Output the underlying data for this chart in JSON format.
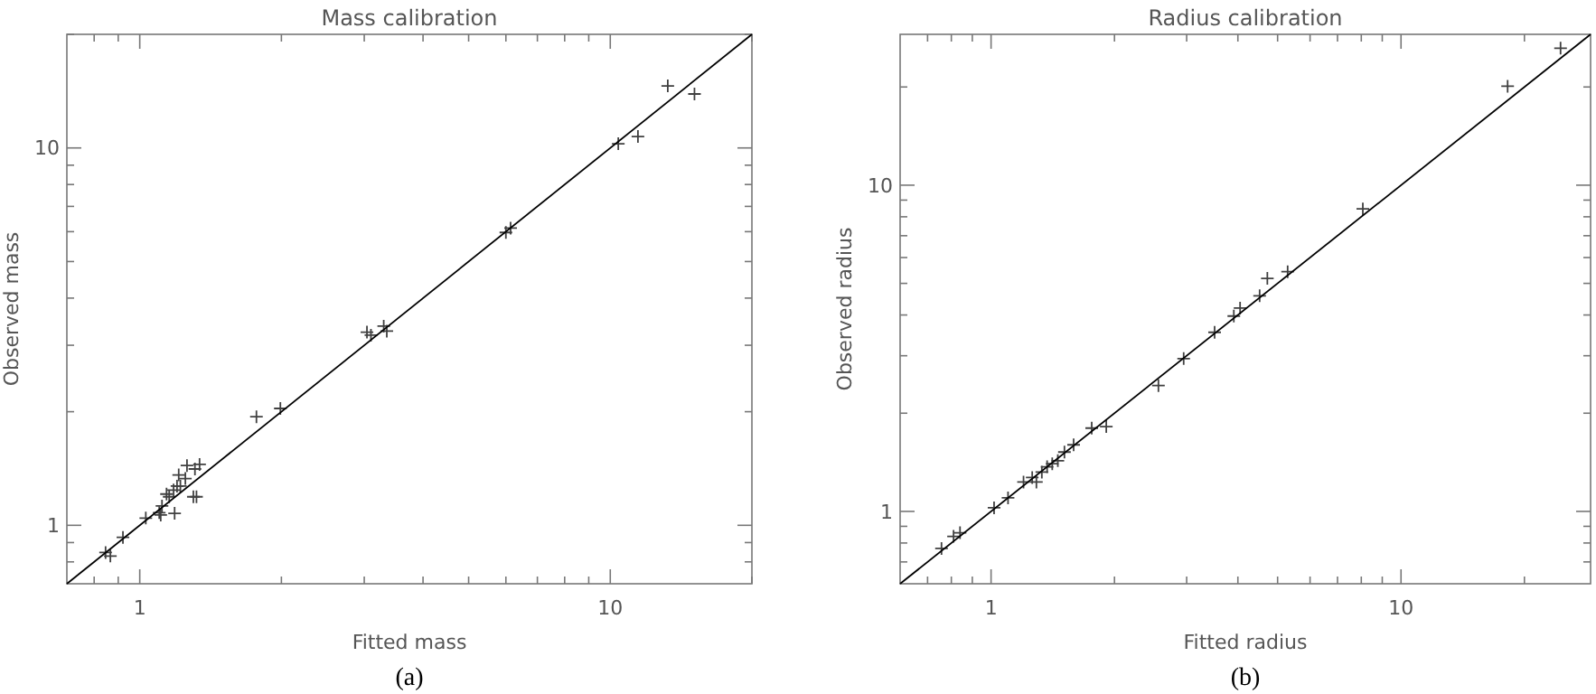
{
  "chart_data": [
    {
      "type": "scatter",
      "title": "Mass calibration",
      "xlabel": "Fitted mass",
      "ylabel": "Observed mass",
      "log": "xy",
      "annotations": [
        "(a)"
      ],
      "xlim": [
        0.7,
        20
      ],
      "ylim": [
        0.7,
        20
      ],
      "xticks": [
        {
          "value": 0.8,
          "label": null
        },
        {
          "value": 0.9,
          "label": null
        },
        {
          "value": 1,
          "label": "1"
        },
        {
          "value": 2,
          "label": null
        },
        {
          "value": 3,
          "label": null
        },
        {
          "value": 4,
          "label": null
        },
        {
          "value": 5,
          "label": null
        },
        {
          "value": 6,
          "label": null
        },
        {
          "value": 7,
          "label": null
        },
        {
          "value": 8,
          "label": null
        },
        {
          "value": 9,
          "label": null
        },
        {
          "value": 10,
          "label": "10"
        },
        {
          "value": 20,
          "label": null
        }
      ],
      "yticks": [
        {
          "value": 0.8,
          "label": null
        },
        {
          "value": 0.9,
          "label": null
        },
        {
          "value": 1,
          "label": "1"
        },
        {
          "value": 2,
          "label": null
        },
        {
          "value": 3,
          "label": null
        },
        {
          "value": 4,
          "label": null
        },
        {
          "value": 5,
          "label": null
        },
        {
          "value": 6,
          "label": null
        },
        {
          "value": 7,
          "label": null
        },
        {
          "value": 8,
          "label": null
        },
        {
          "value": 9,
          "label": null
        },
        {
          "value": 10,
          "label": "10"
        },
        {
          "value": 20,
          "label": null
        }
      ],
      "series": [
        {
          "type": "scatter",
          "marker": "cross",
          "color": "#404040",
          "x": [
            0.846,
            0.866,
            0.921,
            1.03,
            1.1,
            1.108,
            1.115,
            1.14,
            1.155,
            1.186,
            1.18,
            1.2,
            1.22,
            1.21,
            1.25,
            1.26,
            1.3,
            1.32,
            1.31,
            1.34,
            1.77,
            1.99,
            3.04,
            3.1,
            3.3,
            3.35,
            6.0,
            6.14,
            10.4,
            11.45,
            13.25,
            15.1
          ],
          "values": [
            0.847,
            0.829,
            0.929,
            1.045,
            1.08,
            1.065,
            1.125,
            1.21,
            1.19,
            1.076,
            1.24,
            1.27,
            1.27,
            1.36,
            1.33,
            1.44,
            1.19,
            1.19,
            1.41,
            1.45,
            1.94,
            2.04,
            3.25,
            3.19,
            3.37,
            3.27,
            5.97,
            6.13,
            10.26,
            10.72,
            14.6,
            13.9
          ]
        },
        {
          "type": "line",
          "color": "#000000",
          "line_style": "solid",
          "x": [
            0.7,
            20
          ],
          "values": [
            0.7,
            20
          ]
        }
      ]
    },
    {
      "type": "scatter",
      "title": "Radius calibration",
      "xlabel": "Fitted radius",
      "ylabel": "Observed radius",
      "log": "xy",
      "annotations": [
        "(b)"
      ],
      "xlim": [
        0.6,
        29
      ],
      "ylim": [
        0.6,
        29
      ],
      "xticks": [
        {
          "value": 0.7,
          "label": null
        },
        {
          "value": 0.8,
          "label": null
        },
        {
          "value": 0.9,
          "label": null
        },
        {
          "value": 1,
          "label": "1"
        },
        {
          "value": 2,
          "label": null
        },
        {
          "value": 3,
          "label": null
        },
        {
          "value": 4,
          "label": null
        },
        {
          "value": 5,
          "label": null
        },
        {
          "value": 6,
          "label": null
        },
        {
          "value": 7,
          "label": null
        },
        {
          "value": 8,
          "label": null
        },
        {
          "value": 9,
          "label": null
        },
        {
          "value": 10,
          "label": "10"
        },
        {
          "value": 20,
          "label": null
        }
      ],
      "yticks": [
        {
          "value": 0.7,
          "label": null
        },
        {
          "value": 0.8,
          "label": null
        },
        {
          "value": 0.9,
          "label": null
        },
        {
          "value": 1,
          "label": "1"
        },
        {
          "value": 2,
          "label": null
        },
        {
          "value": 3,
          "label": null
        },
        {
          "value": 4,
          "label": null
        },
        {
          "value": 5,
          "label": null
        },
        {
          "value": 6,
          "label": null
        },
        {
          "value": 7,
          "label": null
        },
        {
          "value": 8,
          "label": null
        },
        {
          "value": 9,
          "label": null
        },
        {
          "value": 10,
          "label": "10"
        },
        {
          "value": 20,
          "label": null
        }
      ],
      "series": [
        {
          "type": "scatter",
          "marker": "cross",
          "color": "#404040",
          "x": [
            0.757,
            0.81,
            0.84,
            1.017,
            1.1,
            1.2,
            1.26,
            1.29,
            1.33,
            1.37,
            1.41,
            1.455,
            1.51,
            1.59,
            1.76,
            1.91,
            2.56,
            2.95,
            3.51,
            3.91,
            4.05,
            4.52,
            4.72,
            5.29,
            8.07,
            18.2,
            24.5
          ],
          "values": [
            0.77,
            0.838,
            0.86,
            1.026,
            1.1,
            1.23,
            1.27,
            1.23,
            1.32,
            1.37,
            1.4,
            1.43,
            1.52,
            1.6,
            1.8,
            1.82,
            2.43,
            2.94,
            3.54,
            3.97,
            4.2,
            4.58,
            5.18,
            5.43,
            8.46,
            20.1,
            26.3
          ]
        },
        {
          "type": "line",
          "color": "#000000",
          "line_style": "solid",
          "x": [
            0.6,
            29
          ],
          "values": [
            0.6,
            29
          ]
        }
      ]
    }
  ]
}
